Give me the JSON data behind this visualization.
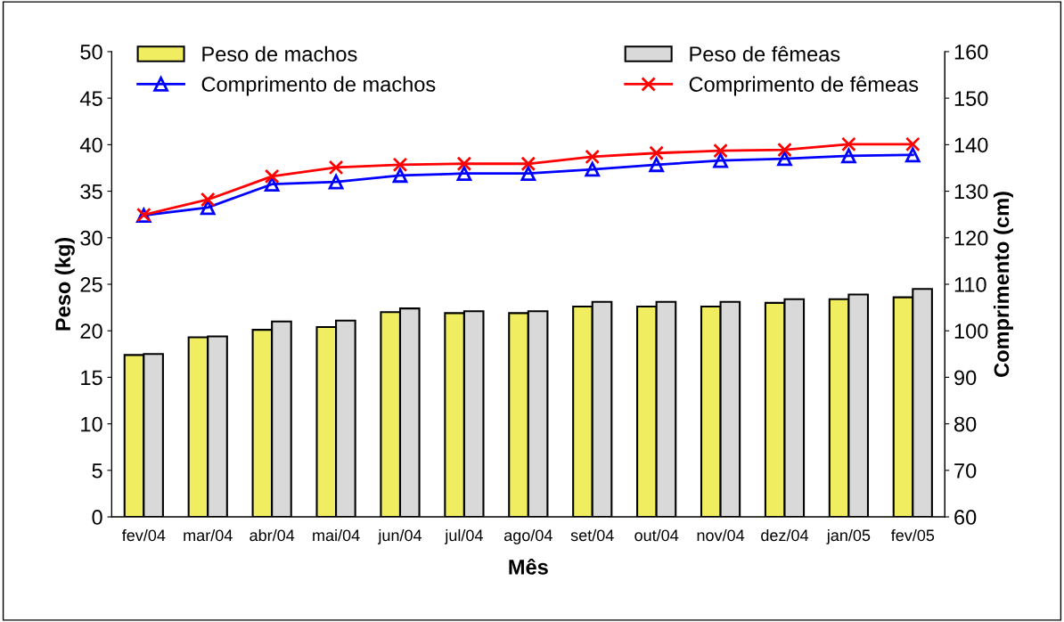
{
  "chart_data": {
    "type": "bar",
    "xlabel": "Mês",
    "ylabel": "Peso (kg)",
    "y2label": "Comprimento (cm)",
    "categories": [
      "fev/04",
      "mar/04",
      "abr/04",
      "mai/04",
      "jun/04",
      "jul/04",
      "ago/04",
      "set/04",
      "out/04",
      "nov/04",
      "dez/04",
      "jan/05",
      "fev/05"
    ],
    "series": [
      {
        "name": "Peso de machos",
        "color": "#f0ee60",
        "values": [
          17.4,
          19.3,
          20.1,
          20.4,
          22.0,
          21.9,
          21.9,
          22.6,
          22.6,
          22.6,
          23.0,
          23.4,
          23.6
        ]
      },
      {
        "name": "Peso de fêmeas",
        "color": "#d9d9d9",
        "values": [
          17.5,
          19.4,
          21.0,
          21.1,
          22.4,
          22.1,
          22.1,
          23.1,
          23.1,
          23.1,
          23.4,
          23.9,
          24.5
        ]
      },
      {
        "name": "Comprimento de machos",
        "type": "line",
        "axis": "y2",
        "marker": "triangle",
        "color": "#0000ff",
        "values": [
          124.8,
          126.5,
          131.5,
          132.0,
          133.4,
          133.8,
          133.8,
          134.7,
          135.7,
          136.6,
          137.0,
          137.6,
          137.8
        ]
      },
      {
        "name": "Comprimento de fêmeas",
        "type": "line",
        "axis": "y2",
        "marker": "cross",
        "color": "#ff0000",
        "values": [
          124.9,
          128.2,
          133.2,
          135.1,
          135.7,
          135.9,
          135.9,
          137.4,
          138.2,
          138.7,
          138.9,
          140.1,
          140.1
        ]
      }
    ],
    "ylim": [
      0,
      50
    ],
    "yticks": [
      0,
      5,
      10,
      15,
      20,
      25,
      30,
      35,
      40,
      45,
      50
    ],
    "y2lim": [
      60,
      160
    ],
    "y2ticks": [
      60,
      70,
      80,
      90,
      100,
      110,
      120,
      130,
      140,
      150,
      160
    ],
    "grid": false,
    "legend": "top"
  }
}
